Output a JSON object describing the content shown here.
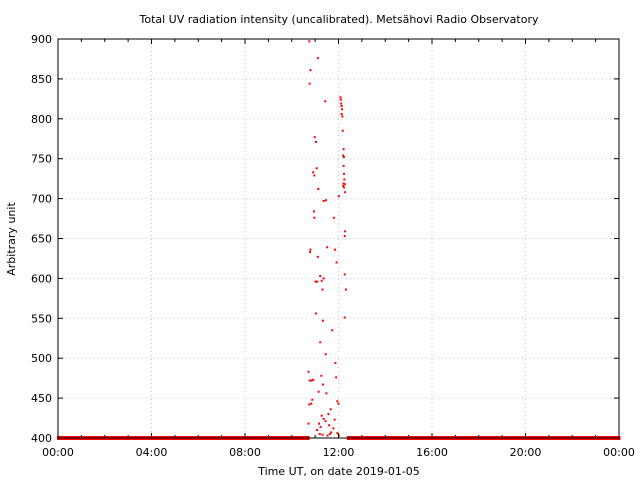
{
  "chart_data": {
    "type": "scatter",
    "title": "Total UV radiation intensity (uncalibrated). Metsähovi Radio Observatory",
    "xlabel": "Time UT, on date 2019-01-05",
    "ylabel": "Arbitrary unit",
    "xlim": [
      "00:00",
      "24:00"
    ],
    "ylim": [
      400,
      900
    ],
    "x_ticks": [
      "00:00",
      "04:00",
      "08:00",
      "12:00",
      "16:00",
      "20:00",
      "00:00"
    ],
    "y_ticks": [
      "400",
      "450",
      "500",
      "550",
      "600",
      "650",
      "700",
      "750",
      "800",
      "850",
      "900"
    ],
    "grid": true,
    "marker_color": "#ff0000",
    "baseline": {
      "value": 400,
      "x_start": "00:00",
      "x_end": "24:00"
    },
    "points": [
      {
        "x": "10:45",
        "y": 897
      },
      {
        "x": "10:48",
        "y": 861
      },
      {
        "x": "10:46",
        "y": 844
      },
      {
        "x": "11:07",
        "y": 876
      },
      {
        "x": "11:26",
        "y": 822
      },
      {
        "x": "12:05",
        "y": 827
      },
      {
        "x": "12:06",
        "y": 824
      },
      {
        "x": "12:07",
        "y": 819
      },
      {
        "x": "12:08",
        "y": 816
      },
      {
        "x": "12:09",
        "y": 812
      },
      {
        "x": "12:08",
        "y": 806
      },
      {
        "x": "12:10",
        "y": 803
      },
      {
        "x": "12:11",
        "y": 785
      },
      {
        "x": "10:59",
        "y": 777
      },
      {
        "x": "11:02",
        "y": 771
      },
      {
        "x": "12:13",
        "y": 762
      },
      {
        "x": "12:12",
        "y": 754
      },
      {
        "x": "12:14",
        "y": 752
      },
      {
        "x": "12:13",
        "y": 741
      },
      {
        "x": "11:04",
        "y": 738
      },
      {
        "x": "10:55",
        "y": 733
      },
      {
        "x": "10:58",
        "y": 729
      },
      {
        "x": "12:14",
        "y": 731
      },
      {
        "x": "12:15",
        "y": 724
      },
      {
        "x": "12:13",
        "y": 719
      },
      {
        "x": "12:16",
        "y": 718
      },
      {
        "x": "12:12",
        "y": 716
      },
      {
        "x": "12:14",
        "y": 714
      },
      {
        "x": "11:08",
        "y": 712
      },
      {
        "x": "12:17",
        "y": 708
      },
      {
        "x": "12:01",
        "y": 703
      },
      {
        "x": "11:22",
        "y": 697
      },
      {
        "x": "11:28",
        "y": 698
      },
      {
        "x": "10:57",
        "y": 684
      },
      {
        "x": "10:58",
        "y": 676
      },
      {
        "x": "11:48",
        "y": 676
      },
      {
        "x": "12:17",
        "y": 659
      },
      {
        "x": "12:16",
        "y": 653
      },
      {
        "x": "11:31",
        "y": 639
      },
      {
        "x": "10:48",
        "y": 636
      },
      {
        "x": "10:47",
        "y": 633
      },
      {
        "x": "11:51",
        "y": 636
      },
      {
        "x": "11:07",
        "y": 627
      },
      {
        "x": "11:55",
        "y": 620
      },
      {
        "x": "12:16",
        "y": 605
      },
      {
        "x": "11:13",
        "y": 603
      },
      {
        "x": "11:22",
        "y": 600
      },
      {
        "x": "11:17",
        "y": 597
      },
      {
        "x": "11:01",
        "y": 596
      },
      {
        "x": "11:05",
        "y": 596
      },
      {
        "x": "11:19",
        "y": 586
      },
      {
        "x": "12:19",
        "y": 586
      },
      {
        "x": "11:02",
        "y": 556
      },
      {
        "x": "12:16",
        "y": 551
      },
      {
        "x": "11:20",
        "y": 547
      },
      {
        "x": "11:44",
        "y": 535
      },
      {
        "x": "11:13",
        "y": 520
      },
      {
        "x": "11:27",
        "y": 505
      },
      {
        "x": "11:52",
        "y": 494
      },
      {
        "x": "10:43",
        "y": 483
      },
      {
        "x": "11:16",
        "y": 478
      },
      {
        "x": "11:54",
        "y": 476
      },
      {
        "x": "10:46",
        "y": 472
      },
      {
        "x": "10:51",
        "y": 472
      },
      {
        "x": "10:55",
        "y": 473
      },
      {
        "x": "11:20",
        "y": 467
      },
      {
        "x": "11:09",
        "y": 458
      },
      {
        "x": "11:29",
        "y": 456
      },
      {
        "x": "10:53",
        "y": 448
      },
      {
        "x": "10:50",
        "y": 443
      },
      {
        "x": "10:45",
        "y": 442
      },
      {
        "x": "11:57",
        "y": 446
      },
      {
        "x": "12:00",
        "y": 443
      },
      {
        "x": "11:40",
        "y": 436
      },
      {
        "x": "11:34",
        "y": 430
      },
      {
        "x": "11:17",
        "y": 428
      },
      {
        "x": "11:22",
        "y": 424
      },
      {
        "x": "11:27",
        "y": 421
      },
      {
        "x": "11:50",
        "y": 423
      },
      {
        "x": "11:10",
        "y": 418
      },
      {
        "x": "11:36",
        "y": 416
      },
      {
        "x": "10:43",
        "y": 418
      },
      {
        "x": "11:14",
        "y": 414
      },
      {
        "x": "11:47",
        "y": 412
      },
      {
        "x": "11:05",
        "y": 410
      },
      {
        "x": "11:41",
        "y": 407
      },
      {
        "x": "11:12",
        "y": 405
      },
      {
        "x": "11:19",
        "y": 404
      },
      {
        "x": "11:38",
        "y": 405
      },
      {
        "x": "11:57",
        "y": 406
      },
      {
        "x": "12:01",
        "y": 403
      },
      {
        "x": "11:32",
        "y": 403
      }
    ]
  }
}
